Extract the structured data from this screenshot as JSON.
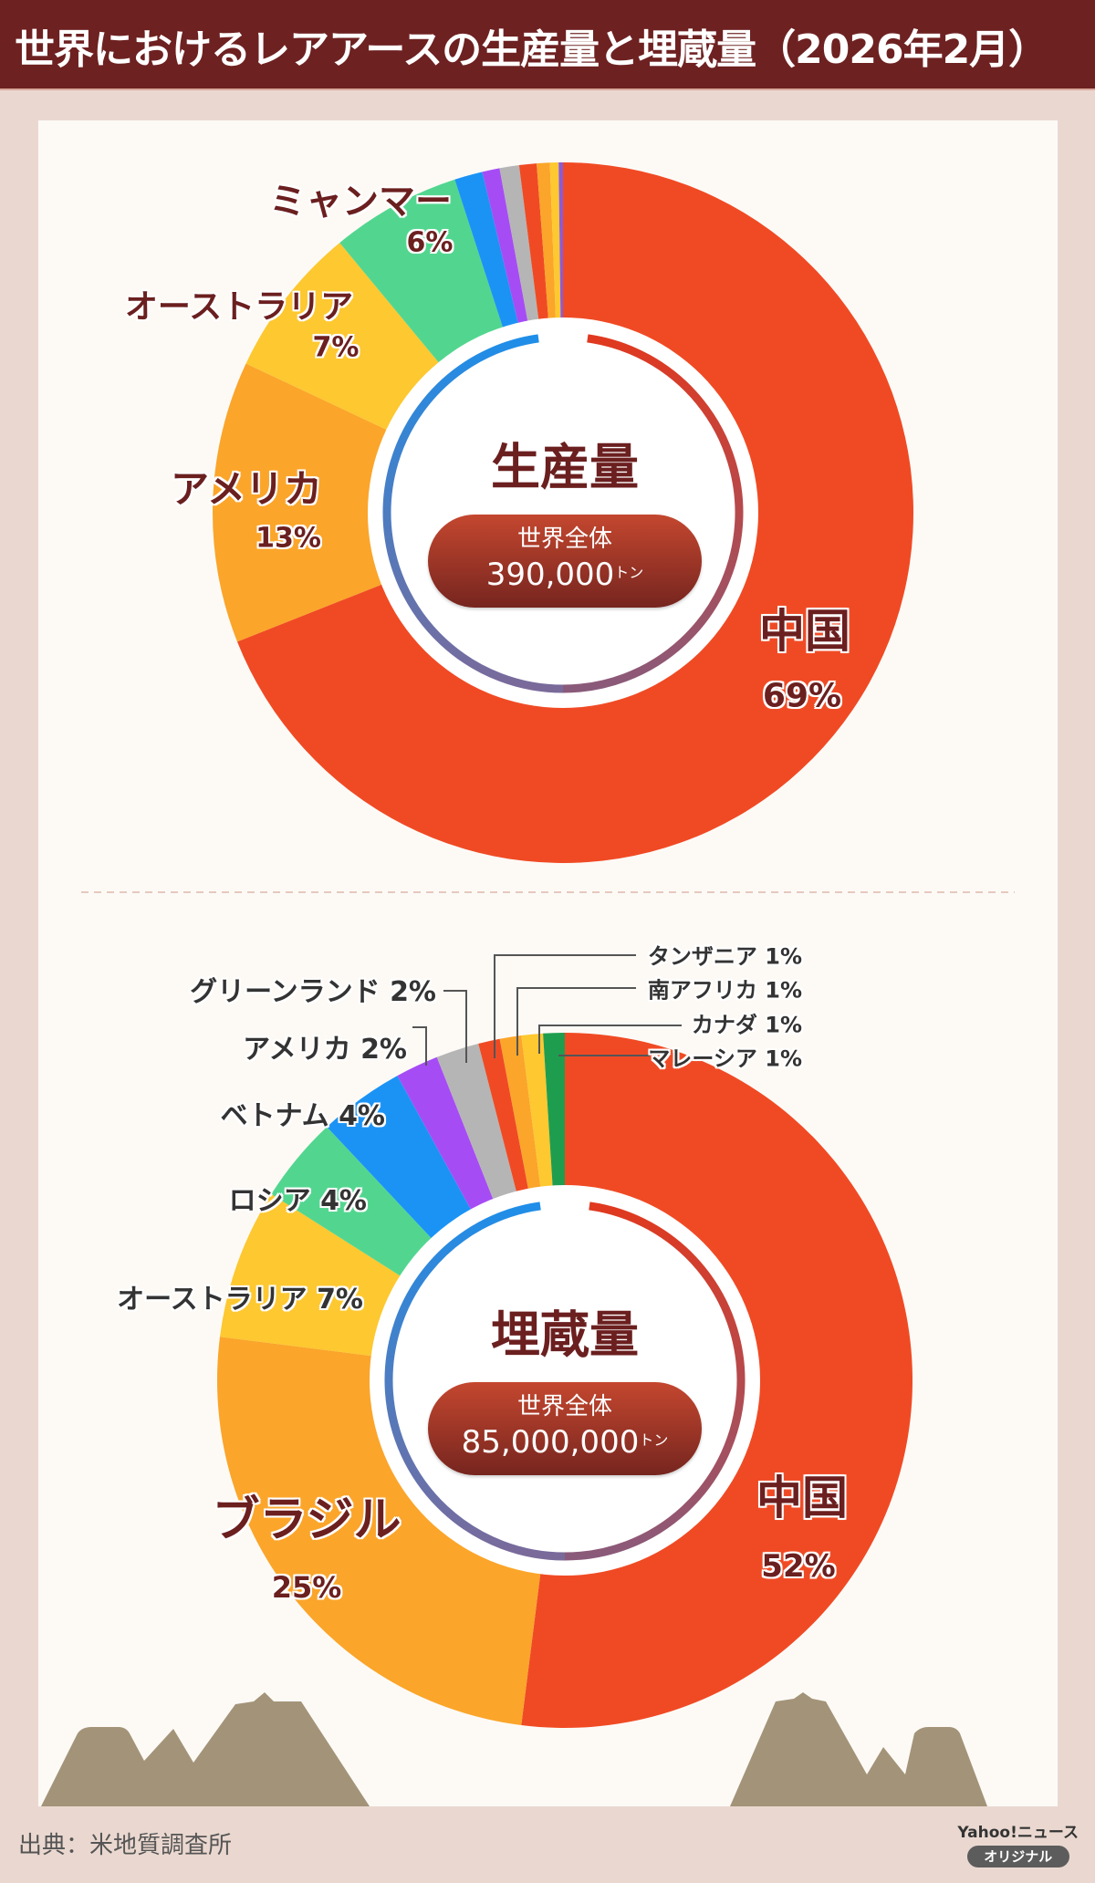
{
  "header": {
    "title": "世界におけるレアアースの生産量と埋蔵量（2026年2月）"
  },
  "chart_data": [
    {
      "type": "pie",
      "title": "生産量",
      "total_label": "世界全体",
      "total_value": "390,000",
      "total_unit": "トン",
      "slices": [
        {
          "name": "中国",
          "value": 69,
          "label": "69%",
          "color": "#f04a24"
        },
        {
          "name": "アメリカ",
          "value": 13,
          "label": "13%",
          "color": "#fba52a"
        },
        {
          "name": "オーストラリア",
          "value": 7,
          "label": "7%",
          "color": "#fdc830"
        },
        {
          "name": "ミャンマー",
          "value": 6,
          "label": "6%",
          "color": "#52d68f"
        },
        {
          "name": "",
          "value": 1.3,
          "label": "",
          "color": "#1b93f5"
        },
        {
          "name": "",
          "value": 0.8,
          "label": "",
          "color": "#a64cf5"
        },
        {
          "name": "",
          "value": 0.9,
          "label": "",
          "color": "#b5b5b5"
        },
        {
          "name": "",
          "value": 0.8,
          "label": "",
          "color": "#f04a24"
        },
        {
          "name": "",
          "value": 0.6,
          "label": "",
          "color": "#fba52a"
        },
        {
          "name": "",
          "value": 0.4,
          "label": "",
          "color": "#fdc830"
        },
        {
          "name": "",
          "value": 0.2,
          "label": "",
          "color": "#8a5cd6"
        }
      ]
    },
    {
      "type": "pie",
      "title": "埋蔵量",
      "total_label": "世界全体",
      "total_value": "85,000,000",
      "total_unit": "トン",
      "slices": [
        {
          "name": "中国",
          "value": 52,
          "label": "52%",
          "color": "#f04a24"
        },
        {
          "name": "ブラジル",
          "value": 25,
          "label": "25%",
          "color": "#fba52a"
        },
        {
          "name": "オーストラリア",
          "value": 7,
          "label": "7%",
          "color": "#fdc830"
        },
        {
          "name": "ロシア",
          "value": 4,
          "label": "4%",
          "color": "#52d68f"
        },
        {
          "name": "ベトナム",
          "value": 4,
          "label": "4%",
          "color": "#1b93f5"
        },
        {
          "name": "アメリカ",
          "value": 2,
          "label": "2%",
          "color": "#a64cf5"
        },
        {
          "name": "グリーンランド",
          "value": 2,
          "label": "2%",
          "color": "#b5b5b5"
        },
        {
          "name": "タンザニア",
          "value": 1,
          "label": "1%",
          "color": "#f04a24"
        },
        {
          "name": "南アフリカ",
          "value": 1,
          "label": "1%",
          "color": "#fba52a"
        },
        {
          "name": "カナダ",
          "value": 1,
          "label": "1%",
          "color": "#fdc830"
        },
        {
          "name": "マレーシア",
          "value": 1,
          "label": "1%",
          "color": "#1f9d4f"
        }
      ]
    }
  ],
  "footer": {
    "source": "出典：米地質調査所",
    "brand": "Yahoo!ニュース",
    "brand_badge": "オリジナル"
  }
}
